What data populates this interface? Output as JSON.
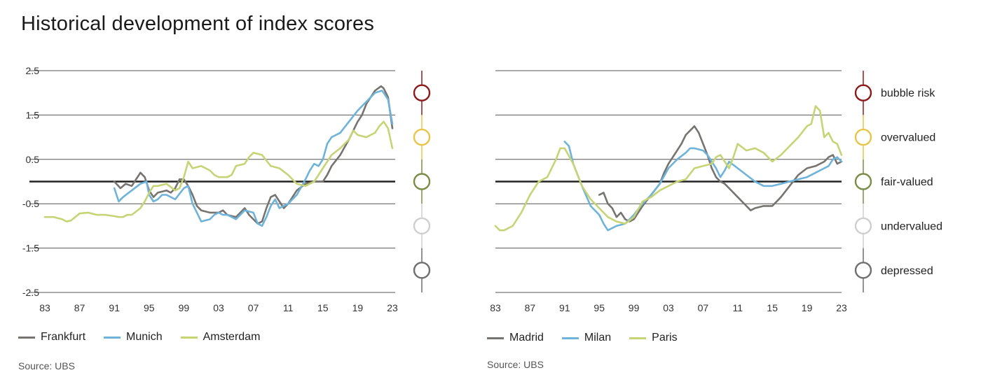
{
  "title": "Historical development of index scores",
  "source_left": "Source: UBS",
  "source_right": "Source: UBS",
  "colors": {
    "grid": "#555555",
    "zero": "#222222",
    "Frankfurt": "#777470",
    "Munich": "#6eb3d9",
    "Amsterdam": "#c6d475",
    "Madrid": "#777470",
    "Milan": "#6eb3d9",
    "Paris": "#c6d475"
  },
  "categories": [
    {
      "label": "bubble risk",
      "value": 2.0,
      "color": "#8b1a1a",
      "icon": "circle-icon"
    },
    {
      "label": "overvalued",
      "value": 1.0,
      "color": "#e8c547",
      "icon": "circle-icon"
    },
    {
      "label": "fair-valued",
      "value": 0.0,
      "color": "#7a8c46",
      "icon": "circle-icon"
    },
    {
      "label": "undervalued",
      "value": -1.0,
      "color": "#cfcfcf",
      "icon": "circle-icon"
    },
    {
      "label": "depressed",
      "value": -2.0,
      "color": "#6f6f6f",
      "icon": "circle-icon"
    }
  ],
  "chart_data": [
    {
      "type": "line",
      "title": "",
      "xlabel": "",
      "ylabel": "",
      "ylim": [
        -2.5,
        2.5
      ],
      "yticks": [
        "2.5",
        "1.5",
        "0.5",
        "-0.5",
        "-1.5",
        "-2.5"
      ],
      "ytick_values": [
        2.5,
        1.5,
        0.5,
        -0.5,
        -1.5,
        -2.5
      ],
      "xlim": [
        1983,
        2023
      ],
      "xticks": [
        "83",
        "87",
        "91",
        "95",
        "99",
        "03",
        "07",
        "11",
        "15",
        "19",
        "23"
      ],
      "xtick_values": [
        1983,
        1987,
        1991,
        1995,
        1999,
        2003,
        2007,
        2011,
        2015,
        2019,
        2023
      ],
      "series": [
        {
          "name": "Frankfurt",
          "x": [
            1991,
            1991.7,
            1992.3,
            1993,
            1993.5,
            1994,
            1994.5,
            1995,
            1995.5,
            1996,
            1997,
            1997.5,
            1998,
            1998.5,
            1999,
            1999.5,
            2000,
            2000.5,
            2001,
            2002,
            2003,
            2003.5,
            2004,
            2005,
            2005.5,
            2006,
            2006.5,
            2007,
            2007.5,
            2008,
            2008.5,
            2009,
            2009.5,
            2010,
            2010.5,
            2011,
            2012,
            2013,
            2014,
            2015,
            2015.5,
            2016,
            2017,
            2018,
            2019,
            2019.5,
            2020,
            2021,
            2021.7,
            2022,
            2022.5,
            2023
          ],
          "values": [
            0.0,
            -0.15,
            -0.05,
            -0.1,
            0.05,
            0.2,
            0.1,
            -0.2,
            -0.35,
            -0.25,
            -0.2,
            -0.25,
            -0.15,
            0.05,
            0.05,
            -0.1,
            -0.3,
            -0.55,
            -0.65,
            -0.7,
            -0.7,
            -0.65,
            -0.75,
            -0.8,
            -0.7,
            -0.6,
            -0.75,
            -0.85,
            -0.95,
            -0.9,
            -0.6,
            -0.35,
            -0.3,
            -0.45,
            -0.6,
            -0.5,
            -0.2,
            -0.05,
            0.0,
            0.0,
            0.15,
            0.35,
            0.6,
            0.95,
            1.35,
            1.5,
            1.75,
            2.05,
            2.15,
            2.1,
            1.9,
            1.2
          ]
        },
        {
          "name": "Munich",
          "x": [
            1991,
            1991.5,
            1992,
            1993,
            1994,
            1994.7,
            1995,
            1995.5,
            1996,
            1996.5,
            1997,
            1998,
            1999,
            1999.5,
            2000,
            2001,
            2002,
            2002.5,
            2003,
            2003.5,
            2004,
            2005,
            2006,
            2007,
            2007.5,
            2008,
            2008.5,
            2009,
            2009.5,
            2010,
            2011,
            2012,
            2013,
            2013.5,
            2014,
            2014.5,
            2015,
            2015.5,
            2016,
            2017,
            2018,
            2019,
            2019.5,
            2020,
            2021,
            2021.8,
            2022,
            2022.5,
            2023
          ],
          "values": [
            -0.15,
            -0.45,
            -0.35,
            -0.2,
            -0.05,
            0.0,
            -0.3,
            -0.45,
            -0.4,
            -0.3,
            -0.3,
            -0.4,
            -0.15,
            -0.1,
            -0.5,
            -0.9,
            -0.85,
            -0.75,
            -0.7,
            -0.75,
            -0.75,
            -0.85,
            -0.65,
            -0.7,
            -0.95,
            -1.0,
            -0.8,
            -0.55,
            -0.4,
            -0.6,
            -0.5,
            -0.3,
            0.05,
            0.25,
            0.4,
            0.35,
            0.5,
            0.85,
            1.0,
            1.1,
            1.35,
            1.6,
            1.7,
            1.8,
            2.0,
            2.05,
            2.0,
            1.85,
            1.3
          ]
        },
        {
          "name": "Amsterdam",
          "x": [
            1983,
            1984,
            1985,
            1985.5,
            1986,
            1986.5,
            1987,
            1988,
            1989,
            1990,
            1991,
            1991.5,
            1992,
            1992.5,
            1993,
            1994,
            1994.5,
            1995,
            1995.5,
            1996,
            1997,
            1998,
            1998.5,
            1999,
            1999.5,
            2000,
            2001,
            2002,
            2002.5,
            2003,
            2004,
            2004.5,
            2005,
            2006,
            2006.5,
            2007,
            2008,
            2009,
            2010,
            2011,
            2012,
            2013,
            2014,
            2015,
            2016,
            2017,
            2018,
            2018.5,
            2019,
            2020,
            2020.5,
            2021,
            2021.5,
            2022,
            2022.5,
            2023
          ],
          "values": [
            -0.8,
            -0.8,
            -0.85,
            -0.9,
            -0.88,
            -0.8,
            -0.72,
            -0.7,
            -0.75,
            -0.75,
            -0.78,
            -0.8,
            -0.8,
            -0.75,
            -0.75,
            -0.6,
            -0.45,
            -0.25,
            -0.1,
            -0.1,
            -0.05,
            -0.2,
            -0.15,
            0.1,
            0.45,
            0.3,
            0.35,
            0.25,
            0.15,
            0.1,
            0.1,
            0.15,
            0.35,
            0.4,
            0.55,
            0.65,
            0.6,
            0.35,
            0.3,
            0.15,
            -0.05,
            -0.1,
            0.0,
            0.3,
            0.6,
            0.75,
            0.95,
            1.15,
            1.05,
            1.0,
            1.05,
            1.1,
            1.25,
            1.35,
            1.2,
            0.75
          ]
        }
      ]
    },
    {
      "type": "line",
      "title": "",
      "xlabel": "",
      "ylabel": "",
      "ylim": [
        -2.5,
        2.5
      ],
      "yticks": [],
      "ytick_values": [
        2.5,
        1.5,
        0.5,
        -0.5,
        -1.5,
        -2.5
      ],
      "xlim": [
        1983,
        2023
      ],
      "xticks": [
        "83",
        "87",
        "91",
        "95",
        "99",
        "03",
        "07",
        "11",
        "15",
        "19",
        "23"
      ],
      "xtick_values": [
        1983,
        1987,
        1991,
        1995,
        1999,
        2003,
        2007,
        2011,
        2015,
        2019,
        2023
      ],
      "series": [
        {
          "name": "Madrid",
          "x": [
            1995,
            1995.5,
            1996,
            1996.5,
            1997,
            1997.5,
            1998,
            1998.5,
            1999,
            1999.5,
            2000,
            2001,
            2002,
            2002.5,
            2003,
            2004,
            2004.5,
            2005,
            2005.5,
            2006,
            2006.5,
            2007,
            2007.5,
            2008,
            2008.5,
            2009,
            2009.5,
            2010,
            2011,
            2012,
            2012.5,
            2013,
            2014,
            2015,
            2016,
            2017,
            2018,
            2019,
            2020,
            2021,
            2021.5,
            2022,
            2022.5,
            2023
          ],
          "values": [
            -0.3,
            -0.25,
            -0.5,
            -0.6,
            -0.8,
            -0.7,
            -0.85,
            -0.9,
            -0.85,
            -0.7,
            -0.55,
            -0.3,
            -0.05,
            0.2,
            0.4,
            0.7,
            0.85,
            1.05,
            1.15,
            1.25,
            1.1,
            0.85,
            0.6,
            0.3,
            0.1,
            0.0,
            -0.05,
            -0.15,
            -0.35,
            -0.55,
            -0.65,
            -0.6,
            -0.55,
            -0.55,
            -0.35,
            -0.1,
            0.15,
            0.3,
            0.35,
            0.45,
            0.55,
            0.6,
            0.4,
            0.45
          ]
        },
        {
          "name": "Milan",
          "x": [
            1991,
            1991.5,
            1992,
            1993,
            1994,
            1995,
            1995.5,
            1996,
            1997,
            1998,
            1999,
            2000,
            2001,
            2002,
            2003,
            2003.5,
            2004,
            2005,
            2005.5,
            2006,
            2007,
            2007.5,
            2008,
            2008.5,
            2009,
            2009.5,
            2010,
            2011,
            2012,
            2013,
            2014,
            2015,
            2016,
            2017,
            2018,
            2019,
            2020,
            2021,
            2021.5,
            2022,
            2022.5,
            2023
          ],
          "values": [
            0.9,
            0.8,
            0.4,
            -0.1,
            -0.55,
            -0.75,
            -0.95,
            -1.1,
            -1.0,
            -0.95,
            -0.75,
            -0.5,
            -0.3,
            -0.05,
            0.3,
            0.4,
            0.5,
            0.65,
            0.75,
            0.75,
            0.7,
            0.6,
            0.45,
            0.3,
            0.1,
            0.25,
            0.45,
            0.3,
            0.15,
            0.0,
            -0.1,
            -0.1,
            -0.05,
            0.0,
            0.05,
            0.1,
            0.2,
            0.3,
            0.35,
            0.5,
            0.55,
            0.45
          ]
        },
        {
          "name": "Paris",
          "x": [
            1983,
            1983.5,
            1984,
            1985,
            1986,
            1987,
            1988,
            1989,
            1990,
            1990.5,
            1991,
            1992,
            1993,
            1994,
            1995,
            1996,
            1997,
            1998,
            1999,
            2000,
            2001,
            2002,
            2003,
            2004,
            2005,
            2006,
            2007,
            2008,
            2008.5,
            2009,
            2010,
            2010.5,
            2011,
            2012,
            2013,
            2014,
            2015,
            2016,
            2017,
            2018,
            2019,
            2019.5,
            2020,
            2020.5,
            2021,
            2021.5,
            2022,
            2022.5,
            2023
          ],
          "values": [
            -1.0,
            -1.1,
            -1.1,
            -1.0,
            -0.7,
            -0.3,
            0.0,
            0.1,
            0.5,
            0.75,
            0.75,
            0.4,
            -0.1,
            -0.4,
            -0.6,
            -0.8,
            -0.9,
            -0.95,
            -0.8,
            -0.45,
            -0.35,
            -0.2,
            -0.1,
            0.0,
            0.05,
            0.3,
            0.35,
            0.4,
            0.55,
            0.6,
            0.3,
            0.55,
            0.85,
            0.7,
            0.75,
            0.65,
            0.45,
            0.6,
            0.8,
            1.0,
            1.25,
            1.3,
            1.7,
            1.6,
            1.0,
            1.1,
            0.9,
            0.85,
            0.6
          ]
        }
      ]
    }
  ]
}
